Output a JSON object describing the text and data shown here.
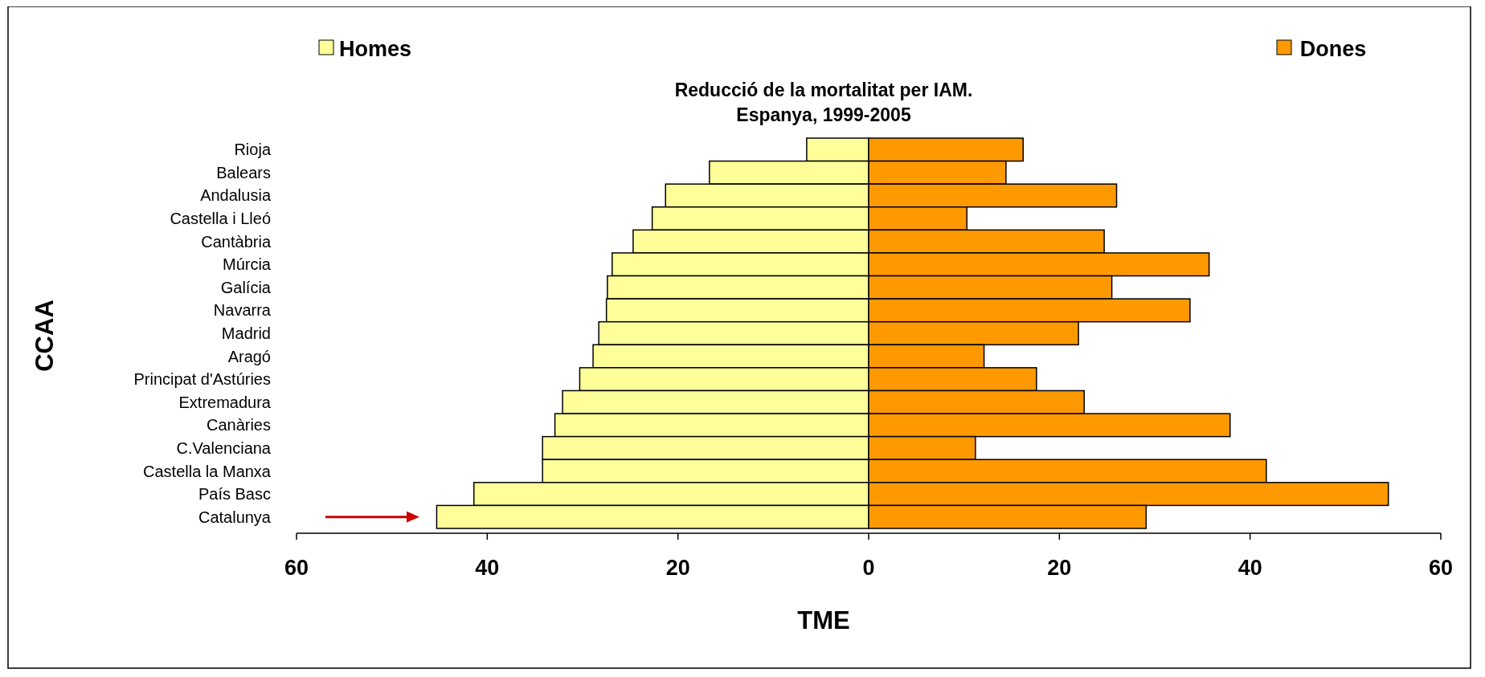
{
  "chart_data": {
    "type": "bar",
    "orientation": "horizontal",
    "stacked": true,
    "legend": "top",
    "title": "Reducció de la mortalitat per IAM.\nEspanya, 1999-2005",
    "xlabel": "TME",
    "ylabel": "CCAA",
    "categories": [
      "Rioja",
      "Balears",
      "Andalusia",
      "Castella i Lleó",
      "Cantàbria",
      "Múrcia",
      "Galícia",
      "Navarra",
      "Madrid",
      "Aragó",
      "Principat d'Astúries",
      "Extremadura",
      "Canàries",
      "C.Valenciana",
      "Castella la Manxa",
      "País Basc",
      "Catalunya"
    ],
    "series": [
      {
        "name": "Homes",
        "color": "#ffff99",
        "values": [
          -6.5,
          -16.7,
          -21.3,
          -22.7,
          -24.7,
          -26.9,
          -27.4,
          -27.5,
          -28.3,
          -28.9,
          -30.3,
          -32.1,
          -32.9,
          -34.2,
          -34.2,
          -41.4,
          -45.3
        ]
      },
      {
        "name": "Dones",
        "color": "#ff9900",
        "values": [
          16.2,
          14.4,
          26.0,
          10.3,
          24.7,
          35.7,
          25.5,
          33.7,
          22.0,
          12.1,
          17.6,
          22.6,
          37.9,
          11.2,
          41.7,
          54.5,
          29.1
        ]
      }
    ],
    "xlim": [
      -60,
      60
    ],
    "xticks": [
      {
        "value": -60,
        "label": "60"
      },
      {
        "value": -40,
        "label": "40"
      },
      {
        "value": -20,
        "label": "20"
      },
      0,
      20,
      40,
      60
    ]
  }
}
